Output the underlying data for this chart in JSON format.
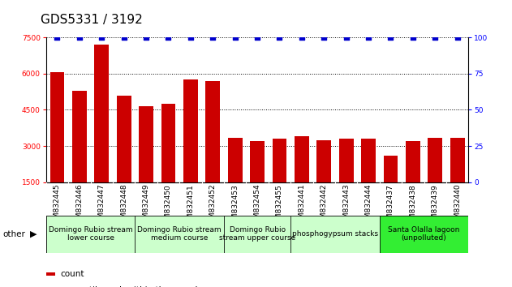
{
  "title": "GDS5331 / 3192",
  "samples": [
    "GSM832445",
    "GSM832446",
    "GSM832447",
    "GSM832448",
    "GSM832449",
    "GSM832450",
    "GSM832451",
    "GSM832452",
    "GSM832453",
    "GSM832454",
    "GSM832455",
    "GSM832441",
    "GSM832442",
    "GSM832443",
    "GSM832444",
    "GSM832437",
    "GSM832438",
    "GSM832439",
    "GSM832440"
  ],
  "counts": [
    6050,
    5300,
    7200,
    5100,
    4650,
    4750,
    5750,
    5700,
    3350,
    3200,
    3300,
    3400,
    3250,
    3300,
    3300,
    2600,
    3200,
    3350,
    3350
  ],
  "percentile_val": 100,
  "bar_color": "#cc0000",
  "dot_color": "#0000cc",
  "ylim_left": [
    1500,
    7500
  ],
  "ylim_right": [
    0,
    100
  ],
  "yticks_left": [
    1500,
    3000,
    4500,
    6000,
    7500
  ],
  "yticks_right": [
    0,
    25,
    50,
    75,
    100
  ],
  "gridlines_at": [
    3000,
    4500,
    6000,
    7500
  ],
  "groups": [
    {
      "label": "Domingo Rubio stream\nlower course",
      "start": 0,
      "end": 3,
      "color": "#ccffcc"
    },
    {
      "label": "Domingo Rubio stream\nmedium course",
      "start": 4,
      "end": 7,
      "color": "#ccffcc"
    },
    {
      "label": "Domingo Rubio\nstream upper course",
      "start": 8,
      "end": 10,
      "color": "#ccffcc"
    },
    {
      "label": "phosphogypsum stacks",
      "start": 11,
      "end": 14,
      "color": "#ccffcc"
    },
    {
      "label": "Santa Olalla lagoon\n(unpolluted)",
      "start": 15,
      "end": 18,
      "color": "#33ee33"
    }
  ],
  "xtick_bg": "#c8c8c8",
  "plot_bg_color": "#ffffff",
  "title_fontsize": 11,
  "tick_fontsize": 6.5,
  "group_fontsize": 6.5,
  "legend_fontsize": 7.5
}
